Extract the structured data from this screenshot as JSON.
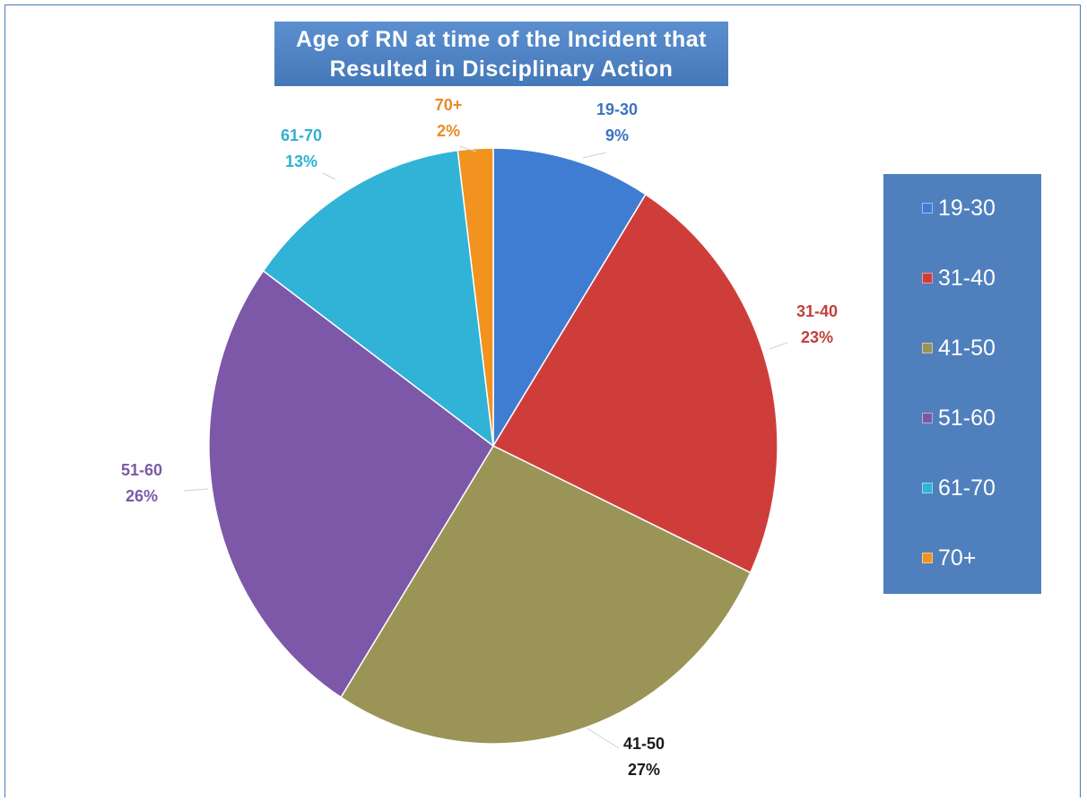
{
  "chart_data": {
    "type": "pie",
    "title": [
      "Age of RN at time of the Incident that",
      "Resulted in Disciplinary Action"
    ],
    "legend_position": "right",
    "slices": [
      {
        "name": "19-30",
        "value": 9,
        "label": "9%",
        "color": "#3f7dd2"
      },
      {
        "name": "31-40",
        "value": 23,
        "label": "23%",
        "color": "#cf3d3b"
      },
      {
        "name": "41-50",
        "value": 27,
        "label": "27%",
        "color": "#9a9457"
      },
      {
        "name": "51-60",
        "value": 26,
        "label": "26%",
        "color": "#7d58a8"
      },
      {
        "name": "61-70",
        "value": 13,
        "label": "13%",
        "color": "#30b3d6"
      },
      {
        "name": "70+",
        "value": 2,
        "label": "2%",
        "color": "#f2921f"
      }
    ],
    "label_colors": [
      "#3d72c0",
      "#c0413e",
      "#1a1a1a",
      "#7d58a8",
      "#2fb0d2",
      "#e98b25"
    ]
  }
}
